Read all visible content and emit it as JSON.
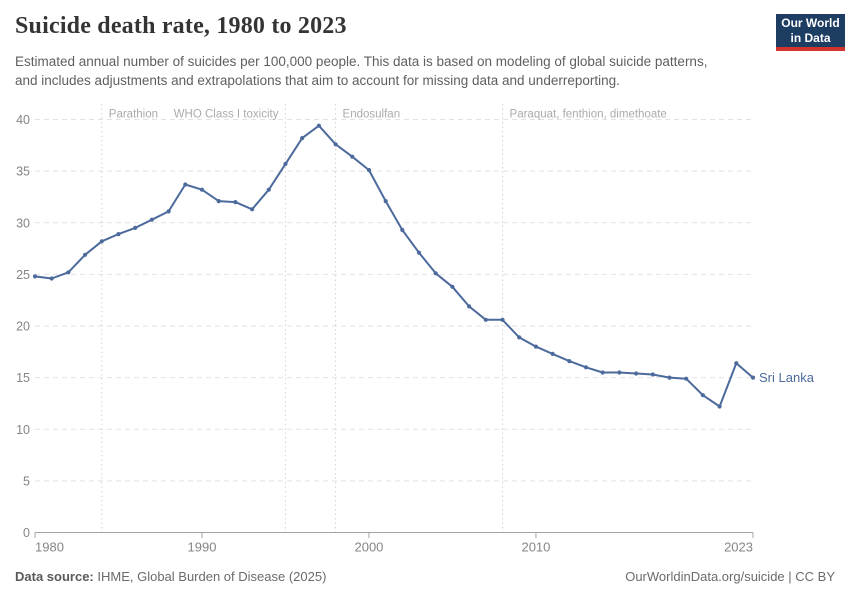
{
  "header": {
    "title": "Suicide death rate, 1980 to 2023",
    "subtitle": "Estimated annual number of suicides per 100,000 people. This data is based on modeling of global suicide patterns, and includes adjustments and extrapolations that aim to account for missing data and underreporting.",
    "logo": {
      "line1": "Our World",
      "line2": "in Data"
    }
  },
  "colors": {
    "line": "#4c6a9c",
    "end_label": "#4c6a9c",
    "grid": "#e2e2e2",
    "annotation_line": "#d4d4d4",
    "axis": "#a3a3a3",
    "tick_text": "#858585",
    "annotation_text": "#ababab",
    "logo_bg": "#1d3d63",
    "logo_accent": "#d1342c"
  },
  "chart_data": {
    "type": "line",
    "title": "Suicide death rate, 1980 to 2023",
    "xlabel": "",
    "ylabel": "",
    "x": [
      1980,
      1981,
      1982,
      1983,
      1984,
      1985,
      1986,
      1987,
      1988,
      1989,
      1990,
      1991,
      1992,
      1993,
      1994,
      1995,
      1996,
      1997,
      1998,
      1999,
      2000,
      2001,
      2002,
      2003,
      2004,
      2005,
      2006,
      2007,
      2008,
      2009,
      2010,
      2011,
      2012,
      2013,
      2014,
      2015,
      2016,
      2017,
      2018,
      2019,
      2020,
      2021,
      2022,
      2023
    ],
    "series": [
      {
        "name": "Sri Lanka",
        "values": [
          24.8,
          24.6,
          25.2,
          26.9,
          28.2,
          28.9,
          29.5,
          30.3,
          31.1,
          33.7,
          33.2,
          32.1,
          32.0,
          31.3,
          33.2,
          35.7,
          38.2,
          39.4,
          37.6,
          36.4,
          35.1,
          32.1,
          29.3,
          27.1,
          25.1,
          23.8,
          21.9,
          20.6,
          20.6,
          18.9,
          18.0,
          17.3,
          16.6,
          16.0,
          15.5,
          15.5,
          15.4,
          15.3,
          15.0,
          14.9,
          13.3,
          12.2,
          16.4,
          15.0
        ]
      }
    ],
    "xlim": [
      1980,
      2023
    ],
    "ylim": [
      0,
      40
    ],
    "yticks": [
      0,
      5,
      10,
      15,
      20,
      25,
      30,
      35,
      40
    ],
    "xticks": [
      1980,
      1990,
      2000,
      2010,
      2023
    ],
    "grid": "horizontal dashed",
    "legend_position": "end-of-line label",
    "end_label": "Sri Lanka",
    "annotations": [
      {
        "year": 1984,
        "label": "Parathion",
        "align": "left"
      },
      {
        "year": 1995,
        "label": "WHO Class I toxicity",
        "align": "right"
      },
      {
        "year": 1998,
        "label": "Endosulfan",
        "align": "left"
      },
      {
        "year": 2008,
        "label": "Paraquat, fenthion, dimethoate",
        "align": "left"
      }
    ]
  },
  "footer": {
    "source_label": "Data source:",
    "source_value": " IHME, Global Burden of Disease (2025)",
    "link": "OurWorldinData.org/suicide | CC BY"
  }
}
